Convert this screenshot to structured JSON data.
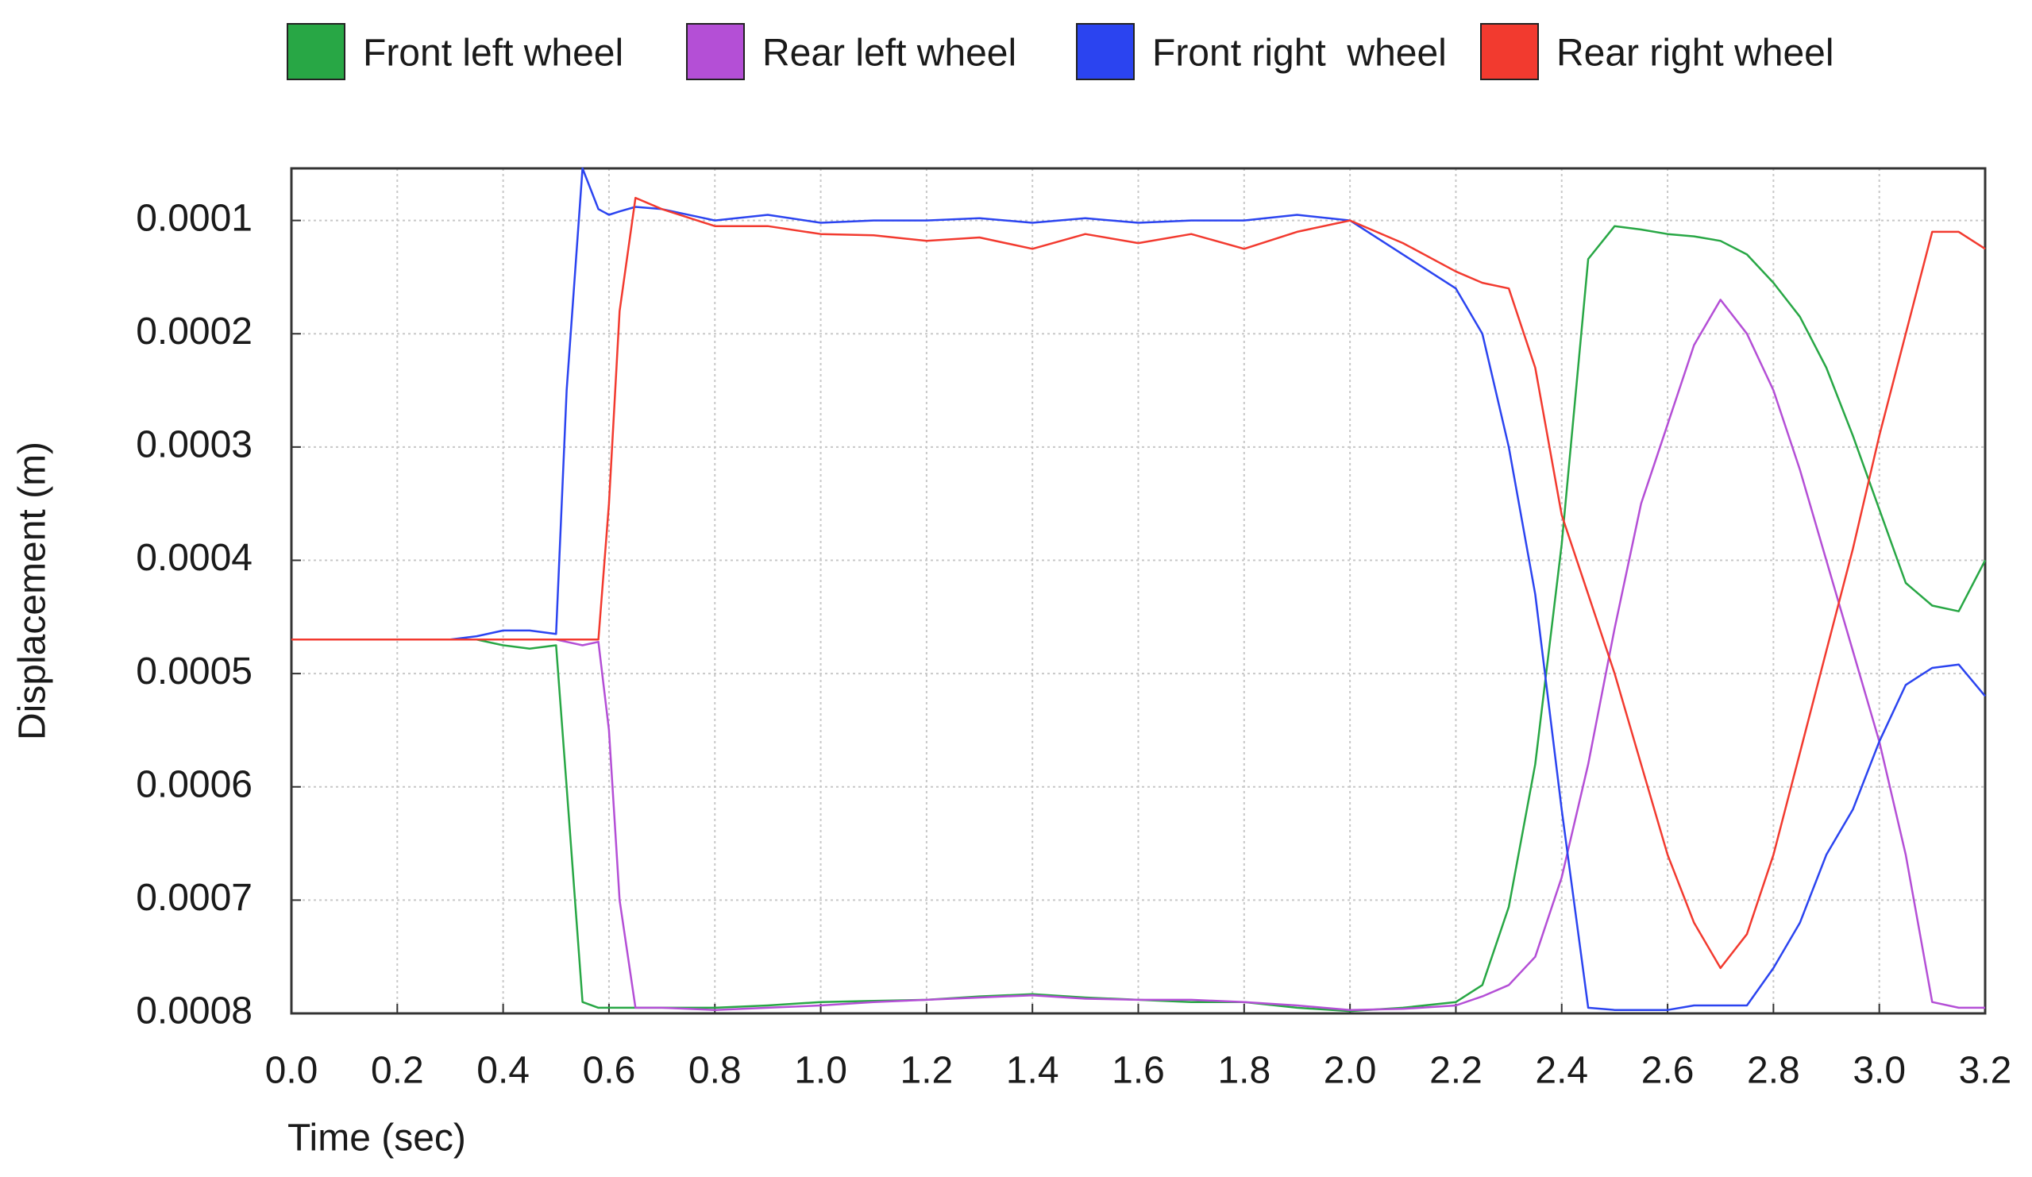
{
  "chart_data": {
    "type": "line",
    "y_label": "Displacement (m)",
    "x_label": "Time (sec)",
    "x": [
      0,
      0.1,
      0.2,
      0.3,
      0.35,
      0.4,
      0.45,
      0.5,
      0.52,
      0.55,
      0.58,
      0.6,
      0.62,
      0.65,
      0.7,
      0.8,
      0.9,
      1.0,
      1.1,
      1.2,
      1.3,
      1.4,
      1.5,
      1.6,
      1.7,
      1.8,
      1.9,
      2.0,
      2.1,
      2.2,
      2.25,
      2.3,
      2.35,
      2.4,
      2.45,
      2.5,
      2.55,
      2.6,
      2.65,
      2.7,
      2.75,
      2.8,
      2.85,
      2.9,
      2.95,
      3.0,
      3.05,
      3.1,
      3.15,
      3.2
    ],
    "series": [
      {
        "name": "Front left wheel",
        "color": "#28a745",
        "values": [
          0.00047,
          0.00047,
          0.00047,
          0.00047,
          0.00047,
          0.000475,
          0.000478,
          0.000475,
          0.0006,
          0.00079,
          0.000795,
          0.000795,
          0.000795,
          0.000795,
          0.000795,
          0.000795,
          0.000793,
          0.00079,
          0.000789,
          0.000788,
          0.000785,
          0.000783,
          0.000786,
          0.000788,
          0.00079,
          0.00079,
          0.000795,
          0.000798,
          0.000795,
          0.00079,
          0.000775,
          0.000706,
          0.00058,
          0.000386,
          0.000134,
          0.000105,
          0.000108,
          0.000112,
          0.000114,
          0.000118,
          0.00013,
          0.000155,
          0.000185,
          0.00023,
          0.00029,
          0.000355,
          0.00042,
          0.00044,
          0.000445,
          0.0004
        ]
      },
      {
        "name": "Rear left wheel",
        "color": "#b44fd6",
        "values": [
          0.00047,
          0.00047,
          0.00047,
          0.00047,
          0.00047,
          0.00047,
          0.00047,
          0.00047,
          0.000472,
          0.000475,
          0.000472,
          0.00055,
          0.0007,
          0.000795,
          0.000795,
          0.000797,
          0.000795,
          0.000793,
          0.00079,
          0.000788,
          0.000786,
          0.000784,
          0.000787,
          0.000788,
          0.000788,
          0.00079,
          0.000793,
          0.000797,
          0.000796,
          0.000793,
          0.000785,
          0.000775,
          0.00075,
          0.00068,
          0.00058,
          0.00046,
          0.00035,
          0.00028,
          0.00021,
          0.00017,
          0.0002,
          0.00025,
          0.00032,
          0.0004,
          0.00048,
          0.00056,
          0.00066,
          0.00079,
          0.000795,
          0.000795
        ]
      },
      {
        "name": "Front right  wheel",
        "color": "#2b44f0",
        "values": [
          0.00047,
          0.00047,
          0.00047,
          0.00047,
          0.000467,
          0.000462,
          0.000462,
          0.000465,
          0.00025,
          5.4e-05,
          9e-05,
          9.5e-05,
          9.2e-05,
          8.8e-05,
          9e-05,
          0.0001,
          9.5e-05,
          0.000102,
          0.0001,
          0.0001,
          9.8e-05,
          0.000102,
          9.8e-05,
          0.000102,
          0.0001,
          0.0001,
          9.5e-05,
          0.0001,
          0.00013,
          0.00016,
          0.0002,
          0.0003,
          0.00043,
          0.00062,
          0.000795,
          0.000797,
          0.000797,
          0.000797,
          0.000793,
          0.000793,
          0.000793,
          0.00076,
          0.00072,
          0.00066,
          0.00062,
          0.00056,
          0.00051,
          0.000495,
          0.000492,
          0.00052
        ]
      },
      {
        "name": "Rear right wheel",
        "color": "#f23a2f",
        "values": [
          0.00047,
          0.00047,
          0.00047,
          0.00047,
          0.00047,
          0.00047,
          0.00047,
          0.00047,
          0.00047,
          0.00047,
          0.00047,
          0.00035,
          0.00018,
          8e-05,
          9e-05,
          0.000105,
          0.000105,
          0.000112,
          0.000113,
          0.000118,
          0.000115,
          0.000125,
          0.000112,
          0.00012,
          0.000112,
          0.000125,
          0.00011,
          0.0001,
          0.00012,
          0.000145,
          0.000155,
          0.00016,
          0.00023,
          0.00036,
          0.00043,
          0.0005,
          0.00058,
          0.00066,
          0.00072,
          0.00076,
          0.00073,
          0.00066,
          0.00057,
          0.00048,
          0.00039,
          0.00029,
          0.0002,
          0.00011,
          0.00011,
          0.000125
        ]
      }
    ],
    "xlim": [
      0,
      3.2
    ],
    "xticks": [
      {
        "value": 0,
        "label": "0.0"
      },
      0.2,
      0.4,
      0.6,
      0.8,
      {
        "value": 1,
        "label": "1.0"
      },
      1.2,
      1.4,
      1.6,
      1.8,
      {
        "value": 2,
        "label": "2.0"
      },
      2.2,
      2.4,
      2.6,
      2.8,
      {
        "value": 3,
        "label": "3.0"
      },
      3.2
    ],
    "ylim": [
      0.0008,
      5.4e-05
    ],
    "yticks": [
      0.0001,
      0.0002,
      0.0003,
      0.0004,
      0.0005,
      0.0006,
      0.0007,
      0.0008
    ],
    "grid": true,
    "legend": "top"
  }
}
